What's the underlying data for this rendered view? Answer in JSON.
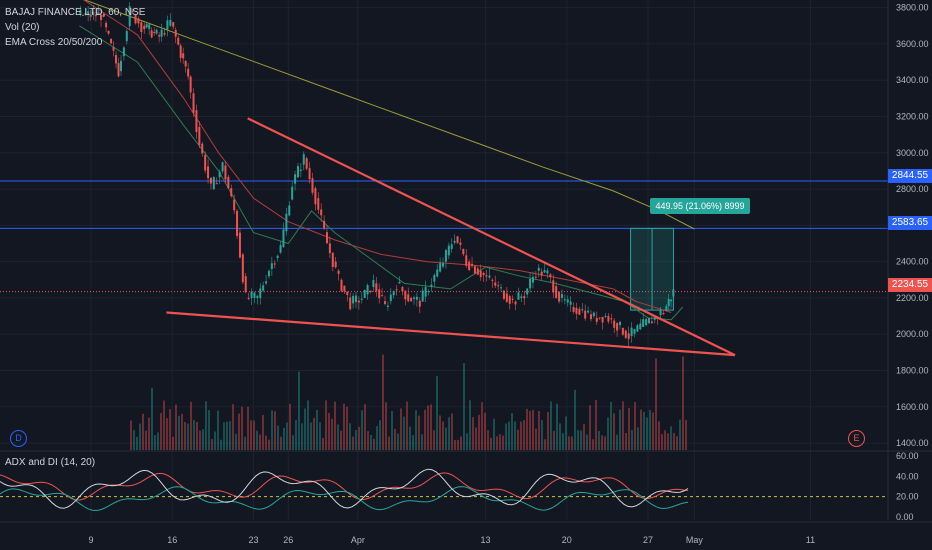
{
  "chart_data": {
    "type": "candlestick",
    "symbol_title": "BAJAJ FINANCE LTD, 60, NSE",
    "indicators": [
      "Vol (20)",
      "EMA Cross 20/50/200"
    ],
    "price_axis": {
      "ticks": [
        3800,
        3600,
        3400,
        3200,
        3000,
        2800,
        2600,
        2400,
        2200,
        2000,
        1800,
        1600,
        1400
      ],
      "tick_labels": [
        "3800.00",
        "3600.00",
        "3400.00",
        "3200.00",
        "3000.00",
        "2800.00",
        "2600.00",
        "2400.00",
        "2200.00",
        "2000.00",
        "1800.00",
        "1600.00",
        "1400.00"
      ],
      "range": [
        1340,
        3820
      ]
    },
    "time_axis": {
      "labels": [
        "9",
        "16",
        "23",
        "26",
        "Apr",
        "13",
        "20",
        "27",
        "May",
        "11"
      ],
      "label_days": [
        9,
        16,
        23,
        26,
        32,
        43,
        50,
        57,
        61,
        71
      ],
      "x_range_days": [
        0,
        77
      ]
    },
    "horizontal_levels": [
      {
        "value": 2844.55,
        "label": "2844.55",
        "color": "#2962ff"
      },
      {
        "value": 2583.65,
        "label": "2583.65",
        "color": "#2962ff"
      },
      {
        "value": 2234.55,
        "label": "2234.55",
        "color": "#ef5350"
      }
    ],
    "current_price_label": "2234.55",
    "trendlines": [
      {
        "from": {
          "day": 22.5,
          "price": 3190
        },
        "to": {
          "day": 64.5,
          "price": 1885
        },
        "color": "#ef5350"
      },
      {
        "from": {
          "day": 15.5,
          "price": 2120
        },
        "to": {
          "day": 64.5,
          "price": 1885
        },
        "color": "#ef5350"
      }
    ],
    "measurement": {
      "label": "449.95 (21.06%) 8999",
      "from_day": 55.5,
      "to_day": 59.2,
      "from_price": 2133,
      "to_price": 2583.65
    },
    "ema200": [
      [
        0,
        3980
      ],
      [
        6,
        3900
      ],
      [
        12,
        3760
      ],
      [
        18,
        3620
      ],
      [
        24,
        3480
      ],
      [
        30,
        3340
      ],
      [
        36,
        3200
      ],
      [
        42,
        3060
      ],
      [
        48,
        2920
      ],
      [
        54,
        2790
      ],
      [
        58,
        2680
      ],
      [
        61,
        2580
      ]
    ],
    "ema50": [
      [
        7,
        3900
      ],
      [
        13,
        3650
      ],
      [
        17,
        3300
      ],
      [
        20,
        3000
      ],
      [
        23,
        2750
      ],
      [
        26,
        2620
      ],
      [
        30,
        2520
      ],
      [
        34,
        2440
      ],
      [
        38,
        2400
      ],
      [
        42,
        2380
      ],
      [
        46,
        2350
      ],
      [
        50,
        2300
      ],
      [
        54,
        2250
      ],
      [
        56,
        2180
      ],
      [
        59,
        2120
      ]
    ],
    "ema20": [
      [
        8,
        3700
      ],
      [
        13,
        3500
      ],
      [
        17,
        3150
      ],
      [
        20,
        2900
      ],
      [
        23,
        2560
      ],
      [
        26,
        2500
      ],
      [
        28,
        2680
      ],
      [
        30,
        2560
      ],
      [
        33,
        2420
      ],
      [
        36,
        2280
      ],
      [
        40,
        2250
      ],
      [
        43,
        2370
      ],
      [
        46,
        2320
      ],
      [
        49,
        2280
      ],
      [
        52,
        2230
      ],
      [
        55,
        2180
      ],
      [
        57,
        2090
      ],
      [
        59,
        2080
      ],
      [
        60,
        2150
      ]
    ],
    "close_path": [
      [
        8,
        3760
      ],
      [
        10,
        3760
      ],
      [
        11.5,
        3450
      ],
      [
        12.5,
        3780
      ],
      [
        13.5,
        3700
      ],
      [
        15,
        3640
      ],
      [
        16,
        3720
      ],
      [
        17.5,
        3420
      ],
      [
        18.5,
        3050
      ],
      [
        19.5,
        2800
      ],
      [
        20.5,
        2930
      ],
      [
        21.5,
        2680
      ],
      [
        22.5,
        2200
      ],
      [
        23.5,
        2200
      ],
      [
        24.5,
        2360
      ],
      [
        25.5,
        2480
      ],
      [
        26.5,
        2830
      ],
      [
        27.5,
        2970
      ],
      [
        28.5,
        2750
      ],
      [
        29.5,
        2500
      ],
      [
        30.5,
        2300
      ],
      [
        31.5,
        2170
      ],
      [
        32.5,
        2200
      ],
      [
        33.5,
        2280
      ],
      [
        34.5,
        2150
      ],
      [
        35.5,
        2280
      ],
      [
        36.5,
        2200
      ],
      [
        37.5,
        2180
      ],
      [
        38.5,
        2290
      ],
      [
        39.5,
        2400
      ],
      [
        40.5,
        2540
      ],
      [
        41.5,
        2400
      ],
      [
        42.5,
        2350
      ],
      [
        43.5,
        2300
      ],
      [
        44.5,
        2240
      ],
      [
        45.5,
        2180
      ],
      [
        46.5,
        2220
      ],
      [
        47.5,
        2350
      ],
      [
        48.5,
        2330
      ],
      [
        49.5,
        2200
      ],
      [
        50.5,
        2150
      ],
      [
        51.5,
        2130
      ],
      [
        52.5,
        2090
      ],
      [
        53.5,
        2100
      ],
      [
        54.5,
        2050
      ],
      [
        55.5,
        1990
      ],
      [
        56.5,
        2040
      ],
      [
        57.5,
        2080
      ],
      [
        58.5,
        2130
      ],
      [
        59.3,
        2234
      ]
    ],
    "volume_axis_note": "volume bars share the price pane bottom",
    "adx_panel": {
      "title": "ADX and DI (14, 20)",
      "ticks": [
        60,
        40,
        20,
        0
      ],
      "tick_labels": [
        "60.00",
        "40.00",
        "20.00",
        "0.00"
      ],
      "range": [
        -3,
        64
      ],
      "reference_level": 20
    }
  },
  "markers": {
    "d_label": "D",
    "e_label": "E"
  }
}
